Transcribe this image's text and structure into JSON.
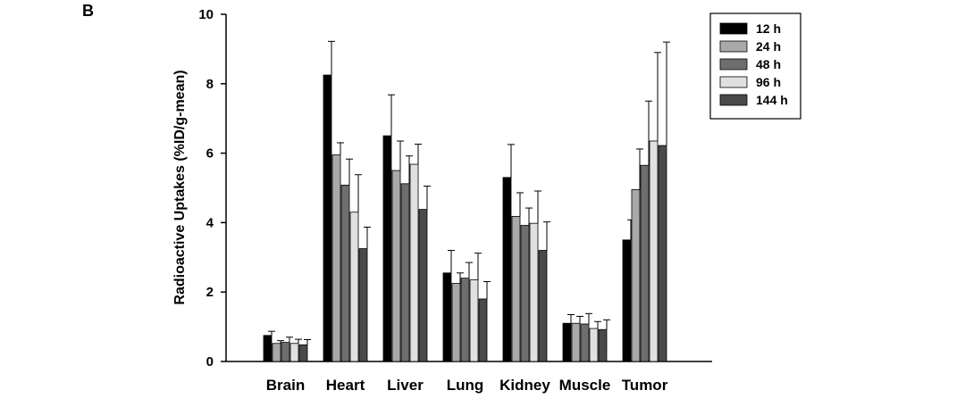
{
  "panel_label": "B",
  "chart_data": {
    "type": "bar",
    "title": "",
    "xlabel": "",
    "ylabel": "Radioactive Uptakes (%ID/g-mean)",
    "ylim": [
      0,
      10
    ],
    "yticks": [
      0,
      2,
      4,
      6,
      8,
      10
    ],
    "categories": [
      "Brain",
      "Heart",
      "Liver",
      "Lung",
      "Kidney",
      "Muscle",
      "Tumor"
    ],
    "legend_position": "top-right",
    "series": [
      {
        "name": "12 h",
        "color": "#000000",
        "values": [
          0.75,
          8.25,
          6.5,
          2.55,
          5.3,
          1.1,
          3.5
        ],
        "errors": [
          0.12,
          0.97,
          1.18,
          0.65,
          0.95,
          0.25,
          0.58
        ]
      },
      {
        "name": "24 h",
        "color": "#a9a9a9",
        "values": [
          0.52,
          5.95,
          5.5,
          2.25,
          4.18,
          1.1,
          4.95
        ],
        "errors": [
          0.08,
          0.35,
          0.85,
          0.3,
          0.68,
          0.2,
          1.17
        ]
      },
      {
        "name": "48 h",
        "color": "#6e6e6e",
        "values": [
          0.55,
          5.08,
          5.12,
          2.4,
          3.92,
          1.08,
          5.65
        ],
        "errors": [
          0.15,
          0.75,
          0.8,
          0.45,
          0.5,
          0.3,
          1.85
        ]
      },
      {
        "name": "96 h",
        "color": "#e0e0e0",
        "values": [
          0.52,
          4.3,
          5.68,
          2.35,
          3.98,
          0.95,
          6.35
        ],
        "errors": [
          0.12,
          1.08,
          0.58,
          0.77,
          0.93,
          0.2,
          2.55
        ]
      },
      {
        "name": "144 h",
        "color": "#4a4a4a",
        "values": [
          0.48,
          3.25,
          4.38,
          1.8,
          3.2,
          0.92,
          6.22
        ],
        "errors": [
          0.15,
          0.62,
          0.67,
          0.5,
          0.82,
          0.28,
          2.98
        ]
      }
    ]
  }
}
